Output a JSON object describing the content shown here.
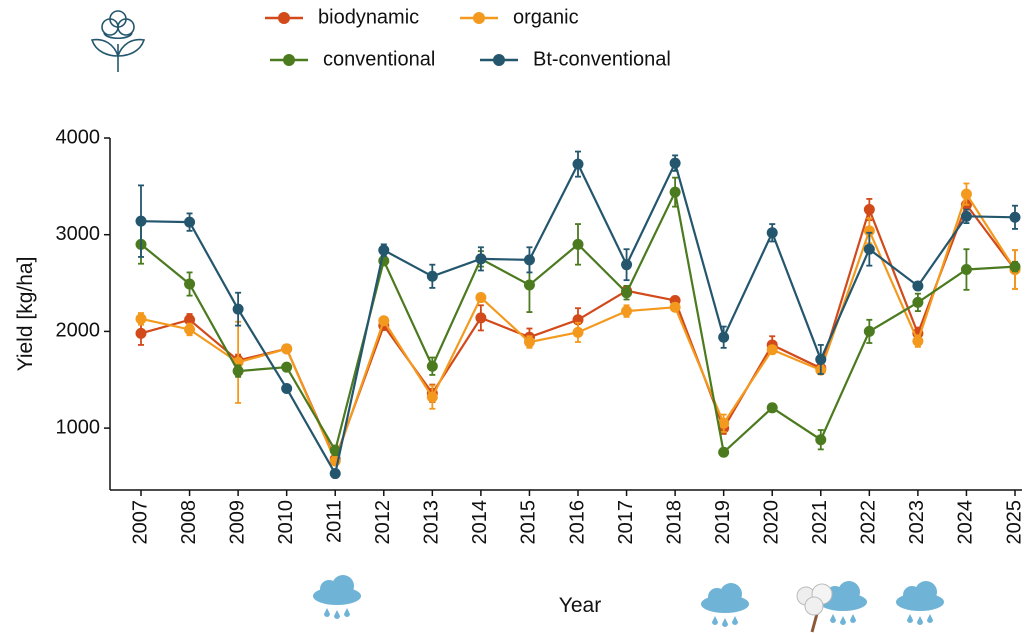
{
  "chart_data": {
    "type": "line",
    "x_label": "Year",
    "y_label": "Yield [kg/ha]",
    "categories": [
      "2007",
      "2008",
      "2009",
      "2010",
      "2011",
      "2012",
      "2013",
      "2014",
      "2015",
      "2016",
      "2017",
      "2018",
      "2019",
      "2020",
      "2021",
      "2022",
      "2023",
      "2024",
      "2025"
    ],
    "ylim": [
      360,
      4000
    ],
    "yticks": [
      1000,
      2000,
      3000,
      4000
    ],
    "series": [
      {
        "name": "biodynamic",
        "color": "#d2491a",
        "values": [
          1980,
          2120,
          1700,
          1820,
          680,
          2060,
          1360,
          2140,
          1940,
          2120,
          2420,
          2320,
          1000,
          1860,
          1620,
          3260,
          1980,
          3310,
          2640
        ],
        "errors": [
          120,
          60,
          60,
          30,
          40,
          30,
          90,
          130,
          90,
          120,
          50,
          30,
          60,
          90,
          40,
          110,
          60,
          100,
          200
        ]
      },
      {
        "name": "organic",
        "color": "#f39a1e",
        "values": [
          2130,
          2020,
          1680,
          1820,
          660,
          2110,
          1320,
          2350,
          1890,
          1990,
          2210,
          2250,
          1050,
          1810,
          1600,
          3040,
          1900,
          3420,
          2640
        ],
        "errors": [
          60,
          60,
          420,
          40,
          30,
          30,
          120,
          40,
          60,
          100,
          60,
          40,
          90,
          40,
          40,
          130,
          60,
          110,
          200
        ]
      },
      {
        "name": "conventional",
        "color": "#4b7a1f",
        "values": [
          2900,
          2490,
          1590,
          1630,
          770,
          2730,
          1640,
          2750,
          2480,
          2900,
          2400,
          3440,
          750,
          1210,
          880,
          2000,
          2300,
          2640,
          2670
        ],
        "errors": [
          200,
          120,
          60,
          30,
          50,
          40,
          90,
          80,
          280,
          210,
          70,
          150,
          40,
          30,
          100,
          120,
          90,
          210,
          50
        ]
      },
      {
        "name": "Bt-conventional",
        "color": "#24566e",
        "values": [
          3140,
          3130,
          2230,
          1410,
          530,
          2840,
          2570,
          2750,
          2740,
          3730,
          2690,
          3740,
          1940,
          3020,
          1710,
          2850,
          2470,
          3190,
          3180
        ],
        "errors": [
          370,
          90,
          170,
          20,
          30,
          60,
          120,
          120,
          130,
          130,
          160,
          80,
          110,
          90,
          150,
          170,
          40,
          70,
          120
        ]
      }
    ]
  }
}
